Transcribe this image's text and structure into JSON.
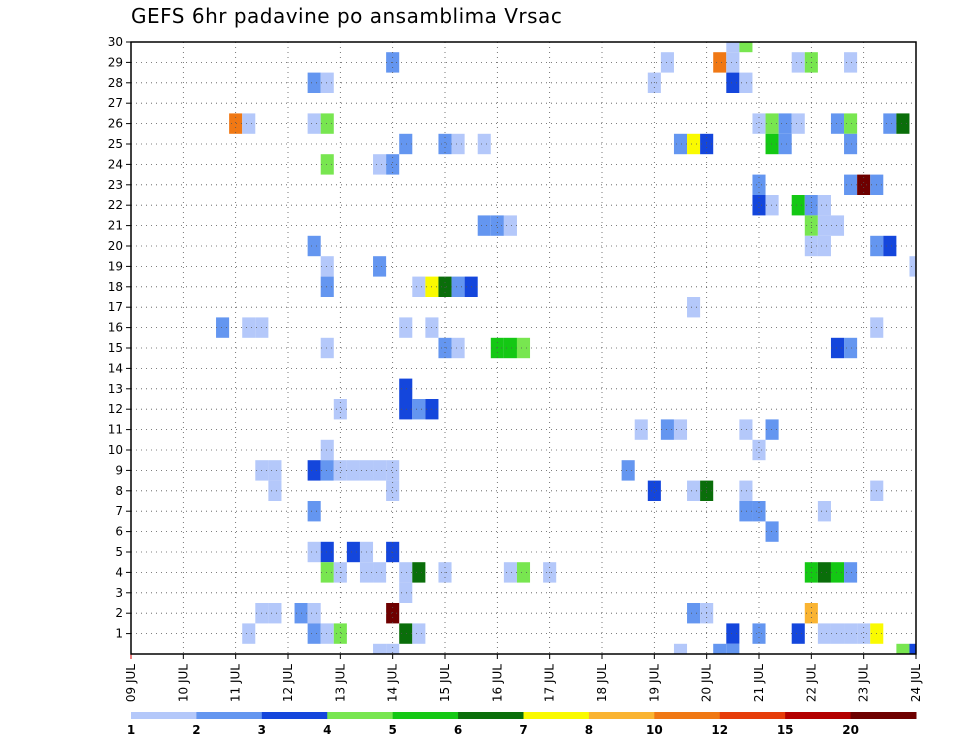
{
  "chart_data": {
    "type": "heatmap",
    "title": "GEFS 6hr padavine po ansamblima Vrsac",
    "xlabel": "",
    "ylabel": "",
    "x_ticks": [
      "09 JUL",
      "10 JUL",
      "11 JUL",
      "12 JUL",
      "13 JUL",
      "14 JUL",
      "15 JUL",
      "16 JUL",
      "17 JUL",
      "18 JUL",
      "19 JUL",
      "20 JUL",
      "21 JUL",
      "22 JUL",
      "23 JUL",
      "24 JUL"
    ],
    "x_range_steps": [
      0,
      60
    ],
    "steps_per_day": 4,
    "y_ticks": [
      1,
      2,
      3,
      4,
      5,
      6,
      7,
      8,
      9,
      10,
      11,
      12,
      13,
      14,
      15,
      16,
      17,
      18,
      19,
      20,
      21,
      22,
      23,
      24,
      25,
      26,
      27,
      28,
      29,
      30
    ],
    "y_range": [
      0,
      30
    ],
    "grid": true,
    "colorbar": {
      "labels": [
        "1",
        "2",
        "3",
        "4",
        "5",
        "6",
        "7",
        "8",
        "10",
        "12",
        "15",
        "20"
      ],
      "colors": [
        "#b4c8fa",
        "#6496f0",
        "#1446dc",
        "#78e650",
        "#14c814",
        "#0a6e0a",
        "#fafa00",
        "#fab432",
        "#f07814",
        "#e63c0a",
        "#b40000",
        "#6e0000"
      ]
    },
    "cells": [
      [
        46,
        30,
        1
      ],
      [
        47,
        30,
        4
      ],
      [
        20,
        29,
        2
      ],
      [
        41,
        29,
        1
      ],
      [
        45,
        29,
        10
      ],
      [
        46,
        29,
        1
      ],
      [
        51,
        29,
        1
      ],
      [
        52,
        29,
        4
      ],
      [
        55,
        29,
        1
      ],
      [
        14,
        28,
        2
      ],
      [
        15,
        28,
        1
      ],
      [
        40,
        28,
        1
      ],
      [
        46,
        28,
        3
      ],
      [
        47,
        28,
        1
      ],
      [
        8,
        26,
        10
      ],
      [
        9,
        26,
        1
      ],
      [
        14,
        26,
        1
      ],
      [
        15,
        26,
        4
      ],
      [
        48,
        26,
        1
      ],
      [
        49,
        26,
        4
      ],
      [
        50,
        26,
        2
      ],
      [
        51,
        26,
        1
      ],
      [
        54,
        26,
        2
      ],
      [
        55,
        26,
        4
      ],
      [
        58,
        26,
        2
      ],
      [
        59,
        26,
        6
      ],
      [
        21,
        25,
        2
      ],
      [
        24,
        25,
        2
      ],
      [
        25,
        25,
        1
      ],
      [
        27,
        25,
        1
      ],
      [
        42,
        25,
        2
      ],
      [
        43,
        25,
        7
      ],
      [
        44,
        25,
        3
      ],
      [
        49,
        25,
        5
      ],
      [
        50,
        25,
        2
      ],
      [
        55,
        25,
        2
      ],
      [
        15,
        24,
        4
      ],
      [
        19,
        24,
        1
      ],
      [
        20,
        24,
        2
      ],
      [
        48,
        23,
        2
      ],
      [
        55,
        23,
        2
      ],
      [
        56,
        23,
        20
      ],
      [
        57,
        23,
        2
      ],
      [
        48,
        22,
        3
      ],
      [
        49,
        22,
        1
      ],
      [
        51,
        22,
        5
      ],
      [
        52,
        22,
        2
      ],
      [
        53,
        22,
        1
      ],
      [
        27,
        21,
        2
      ],
      [
        28,
        21,
        2
      ],
      [
        29,
        21,
        1
      ],
      [
        52,
        21,
        4
      ],
      [
        53,
        21,
        1
      ],
      [
        54,
        21,
        1
      ],
      [
        14,
        20,
        2
      ],
      [
        52,
        20,
        1
      ],
      [
        53,
        20,
        1
      ],
      [
        57,
        20,
        2
      ],
      [
        58,
        20,
        3
      ],
      [
        15,
        19,
        1
      ],
      [
        19,
        19,
        2
      ],
      [
        60,
        19,
        1
      ],
      [
        15,
        18,
        2
      ],
      [
        22,
        18,
        1
      ],
      [
        23,
        18,
        7
      ],
      [
        24,
        18,
        6
      ],
      [
        25,
        18,
        2
      ],
      [
        26,
        18,
        3
      ],
      [
        43,
        17,
        1
      ],
      [
        7,
        16,
        2
      ],
      [
        9,
        16,
        1
      ],
      [
        10,
        16,
        1
      ],
      [
        21,
        16,
        1
      ],
      [
        23,
        16,
        1
      ],
      [
        57,
        16,
        1
      ],
      [
        15,
        15,
        1
      ],
      [
        24,
        15,
        2
      ],
      [
        25,
        15,
        1
      ],
      [
        28,
        15,
        5
      ],
      [
        29,
        15,
        5
      ],
      [
        30,
        15,
        4
      ],
      [
        54,
        15,
        3
      ],
      [
        55,
        15,
        2
      ],
      [
        21,
        13,
        3
      ],
      [
        16,
        12,
        1
      ],
      [
        21,
        12,
        3
      ],
      [
        22,
        12,
        2
      ],
      [
        23,
        12,
        3
      ],
      [
        39,
        11,
        1
      ],
      [
        41,
        11,
        2
      ],
      [
        42,
        11,
        1
      ],
      [
        47,
        11,
        1
      ],
      [
        49,
        11,
        2
      ],
      [
        15,
        10,
        1
      ],
      [
        48,
        10,
        1
      ],
      [
        10,
        9,
        1
      ],
      [
        11,
        9,
        1
      ],
      [
        14,
        9,
        3
      ],
      [
        15,
        9,
        2
      ],
      [
        16,
        9,
        1
      ],
      [
        17,
        9,
        1
      ],
      [
        18,
        9,
        1
      ],
      [
        19,
        9,
        1
      ],
      [
        20,
        9,
        1
      ],
      [
        38,
        9,
        2
      ],
      [
        11,
        8,
        1
      ],
      [
        20,
        8,
        1
      ],
      [
        40,
        8,
        3
      ],
      [
        43,
        8,
        1
      ],
      [
        44,
        8,
        6
      ],
      [
        47,
        8,
        1
      ],
      [
        57,
        8,
        1
      ],
      [
        14,
        7,
        2
      ],
      [
        47,
        7,
        2
      ],
      [
        48,
        7,
        2
      ],
      [
        53,
        7,
        1
      ],
      [
        49,
        6,
        2
      ],
      [
        14,
        5,
        1
      ],
      [
        15,
        5,
        3
      ],
      [
        17,
        5,
        3
      ],
      [
        18,
        5,
        1
      ],
      [
        20,
        5,
        3
      ],
      [
        15,
        4,
        4
      ],
      [
        16,
        4,
        1
      ],
      [
        18,
        4,
        1
      ],
      [
        19,
        4,
        1
      ],
      [
        21,
        4,
        1
      ],
      [
        22,
        4,
        6
      ],
      [
        24,
        4,
        1
      ],
      [
        29,
        4,
        1
      ],
      [
        30,
        4,
        4
      ],
      [
        32,
        4,
        1
      ],
      [
        52,
        4,
        5
      ],
      [
        53,
        4,
        6
      ],
      [
        54,
        4,
        5
      ],
      [
        55,
        4,
        2
      ],
      [
        21,
        3,
        1
      ],
      [
        10,
        2,
        1
      ],
      [
        11,
        2,
        1
      ],
      [
        13,
        2,
        2
      ],
      [
        14,
        2,
        1
      ],
      [
        20,
        2,
        20
      ],
      [
        43,
        2,
        2
      ],
      [
        44,
        2,
        1
      ],
      [
        52,
        2,
        8
      ],
      [
        9,
        1,
        1
      ],
      [
        14,
        1,
        2
      ],
      [
        15,
        1,
        1
      ],
      [
        16,
        1,
        4
      ],
      [
        21,
        1,
        6
      ],
      [
        22,
        1,
        1
      ],
      [
        46,
        1,
        3
      ],
      [
        48,
        1,
        2
      ],
      [
        51,
        1,
        3
      ],
      [
        53,
        1,
        1
      ],
      [
        54,
        1,
        1
      ],
      [
        55,
        1,
        1
      ],
      [
        56,
        1,
        1
      ],
      [
        57,
        1,
        7
      ],
      [
        19,
        0,
        1
      ],
      [
        20,
        0,
        1
      ],
      [
        42,
        0,
        1
      ],
      [
        45,
        0,
        2
      ],
      [
        46,
        0,
        2
      ],
      [
        59,
        0,
        4
      ],
      [
        60,
        0,
        3
      ]
    ]
  }
}
